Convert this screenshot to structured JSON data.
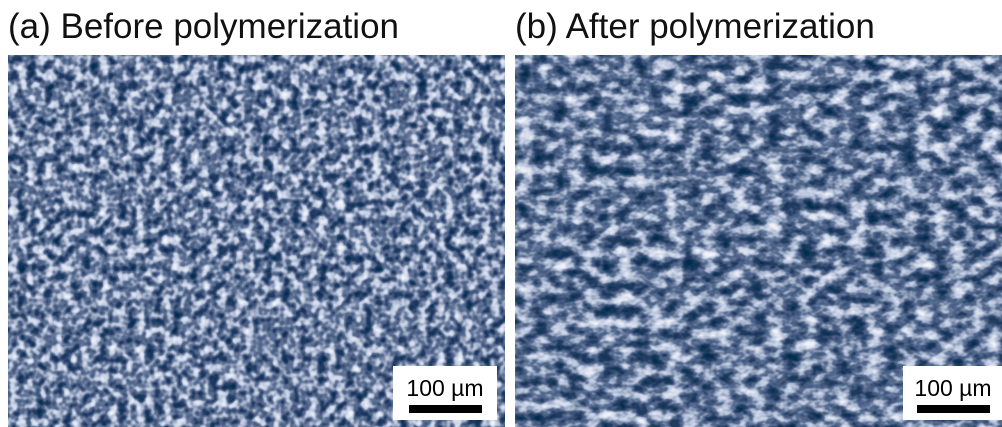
{
  "panels": [
    {
      "title": "(a) Before polymerization",
      "scale_bar": "100 µm"
    },
    {
      "title": "(b) After polymerization",
      "scale_bar": "100 µm"
    }
  ]
}
